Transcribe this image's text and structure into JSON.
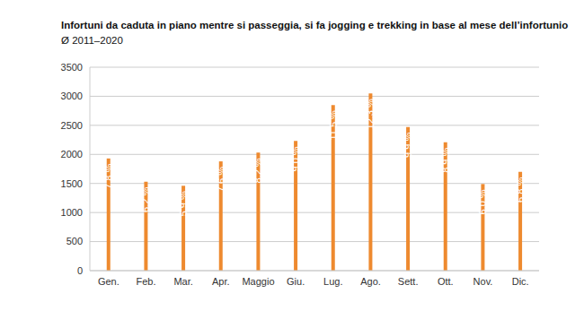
{
  "chart_data": {
    "type": "bar",
    "title": "Infortuni da caduta in piano mentre si passeggia, si fa jogging e trekking in base al mese dell’infortunio",
    "subtitle": "Ø 2011–2020",
    "categories": [
      "Gen.",
      "Feb.",
      "Mar.",
      "Apr.",
      "Maggio",
      "Giu.",
      "Lug.",
      "Ago.",
      "Sett.",
      "Ott.",
      "Nov.",
      "Dic."
    ],
    "values": [
      1930,
      1530,
      1460,
      1880,
      2030,
      2230,
      2850,
      3050,
      2470,
      2210,
      1490,
      1700
    ],
    "share_labels": [
      "7,8 %",
      "6,2 %",
      "5,9 %",
      "7,6 %",
      "8,2 %",
      "9,0 %",
      "11,5 %",
      "12,3 %",
      "9,9 %",
      "8,9 %",
      "6,0 %",
      "6,8 %"
    ],
    "color": "#ee8a2f",
    "ylim": [
      0,
      3500
    ],
    "yticks": [
      0,
      500,
      1000,
      1500,
      2000,
      2500,
      3000,
      3500
    ],
    "grid": true
  }
}
